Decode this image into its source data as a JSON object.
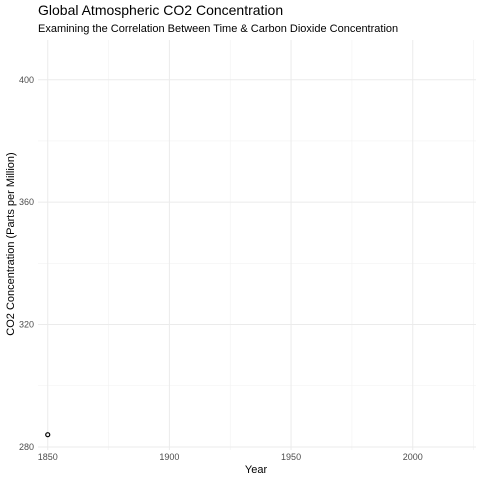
{
  "chart_data": {
    "type": "scatter",
    "title": "Global Atmospheric CO2 Concentration",
    "subtitle": "Examining the Correlation Between Time & Carbon Dioxide Concentration",
    "xlabel": "Year",
    "ylabel": "CO2 Concentration (Parts per Million)",
    "xlim": [
      1846,
      2026
    ],
    "ylim": [
      279,
      413
    ],
    "x_ticks": [
      1850,
      1900,
      1950,
      2000
    ],
    "y_ticks": [
      280,
      320,
      360,
      400
    ],
    "grid": true,
    "legend": "none",
    "points": [
      {
        "x": 1850,
        "y": 284
      }
    ],
    "point_color": "#000000"
  }
}
